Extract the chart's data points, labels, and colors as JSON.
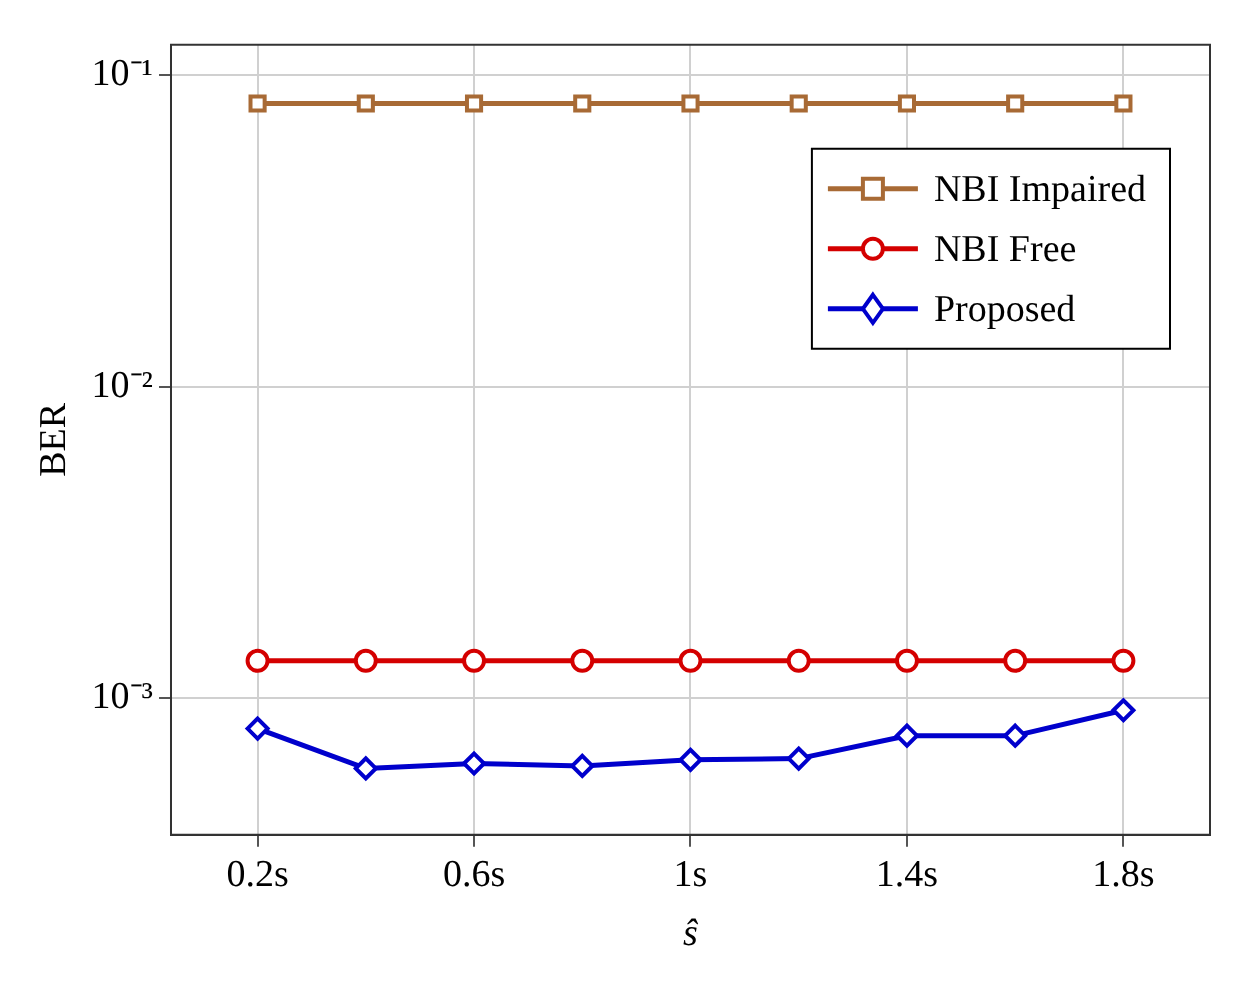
{
  "chart_data": {
    "type": "line",
    "xlabel": "ŝ",
    "ylabel": "BER",
    "log": "y",
    "grid": true,
    "legend": "top right",
    "line_style": "solid",
    "x": [
      0.2,
      0.4,
      0.6,
      0.8,
      1.0,
      1.2,
      1.4,
      1.6,
      1.8
    ],
    "xlim": [
      0.04,
      1.96
    ],
    "xticks": [
      {
        "value": 0.2,
        "label": "0.2s"
      },
      {
        "value": 0.6,
        "label": "0.6s"
      },
      {
        "value": 1,
        "label": "1s"
      },
      {
        "value": 1.4,
        "label": "1.4s"
      },
      {
        "value": 1.8,
        "label": "1.8s"
      }
    ],
    "ylim": [
      0.000365,
      0.125
    ],
    "yticks": [
      {
        "value": 0.001,
        "label": "10⁻³"
      },
      {
        "value": 0.01,
        "label": "10⁻²"
      },
      {
        "value": 0.1,
        "label": "10⁻¹"
      }
    ],
    "series": [
      {
        "name": "NBI Impaired",
        "color": "#a86a35",
        "marker": "square",
        "values": [
          0.081,
          0.081,
          0.081,
          0.081,
          0.081,
          0.081,
          0.081,
          0.081,
          0.081
        ]
      },
      {
        "name": "NBI Free",
        "color": "#d40000",
        "marker": "circle",
        "values": [
          0.00132,
          0.00132,
          0.00132,
          0.00132,
          0.00132,
          0.00132,
          0.00132,
          0.00132,
          0.00132
        ]
      },
      {
        "name": "Proposed",
        "color": "#0000cc",
        "marker": "diamond",
        "values": [
          0.0008,
          0.000596,
          0.000618,
          0.000607,
          0.000635,
          0.000641,
          0.000759,
          0.000759,
          0.000916
        ]
      }
    ]
  }
}
